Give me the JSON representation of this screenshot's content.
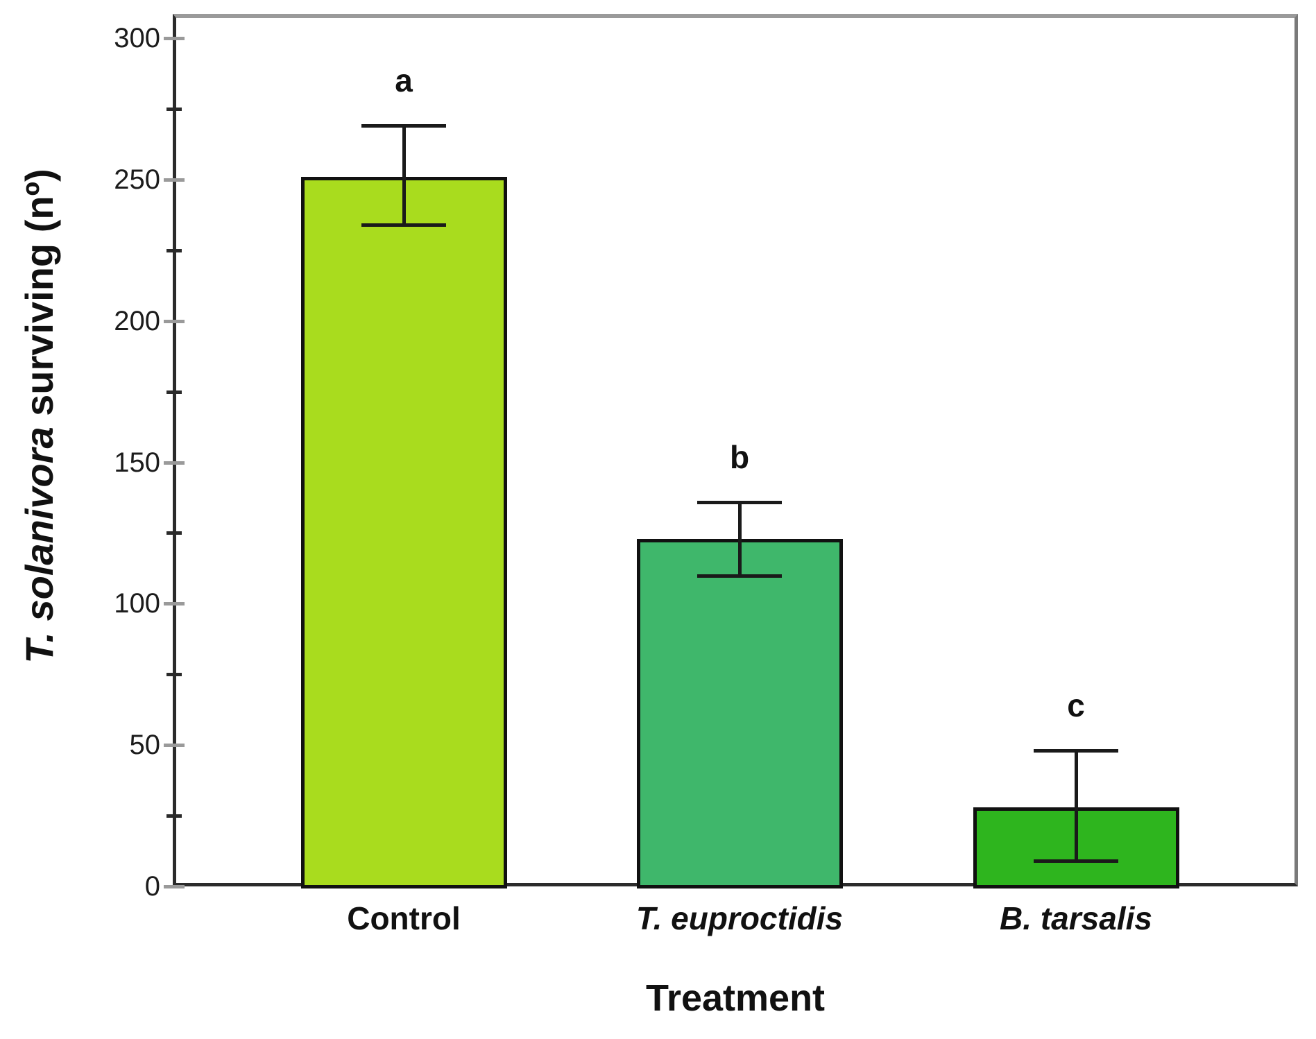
{
  "chart_data": {
    "type": "bar",
    "title": "",
    "categories": [
      {
        "label": "Control",
        "italic": false
      },
      {
        "label": "T. euproctidis",
        "italic": true
      },
      {
        "label": "B. tarsalis",
        "italic": true
      }
    ],
    "values": [
      251,
      123,
      28
    ],
    "error_upper": [
      269,
      136,
      48
    ],
    "error_lower": [
      234,
      110,
      9
    ],
    "sig_letters": [
      "a",
      "b",
      "c"
    ],
    "bar_colors": [
      "#a9dc1e",
      "#3fb76b",
      "#2eb51e"
    ],
    "bar_border_color": "#111111",
    "xlabel": "Treatment",
    "ylabel_italic": "T. solanivora",
    "ylabel_rest": " surviving (nº)",
    "ylim": [
      0,
      300
    ],
    "yticks_major": [
      0,
      50,
      100,
      150,
      200,
      250,
      300
    ],
    "yticks_minor": [
      25,
      75,
      125,
      175,
      225,
      275
    ],
    "grid": false,
    "legend": null
  }
}
